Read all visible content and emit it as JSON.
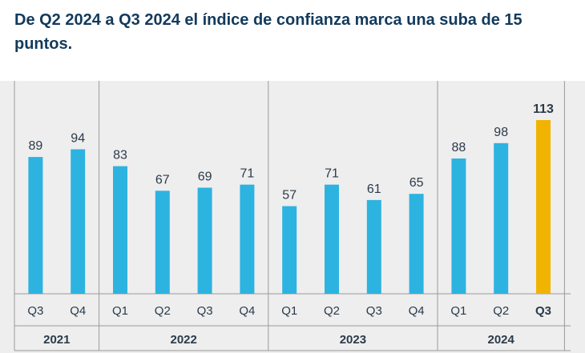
{
  "title": "De Q2 2024 a Q3 2024 el índice de confianza marca una suba de 15 puntos.",
  "colors": {
    "bar": "#2db3e0",
    "highlight": "#f0b400",
    "panel": "#eeeeee",
    "title": "#123a5c",
    "text": "#2b3a4a",
    "divider": "#9a9a9a"
  },
  "chart_data": {
    "type": "bar",
    "categories": [
      "Q3",
      "Q4",
      "Q1",
      "Q2",
      "Q3",
      "Q4",
      "Q1",
      "Q2",
      "Q3",
      "Q4",
      "Q1",
      "Q2",
      "Q3"
    ],
    "values": [
      89,
      94,
      83,
      67,
      69,
      71,
      57,
      71,
      61,
      65,
      88,
      98,
      113
    ],
    "highlight_index": 12,
    "groups": [
      {
        "label": "2021",
        "count": 2
      },
      {
        "label": "2022",
        "count": 4
      },
      {
        "label": "2023",
        "count": 4
      },
      {
        "label": "2024",
        "count": 3
      }
    ],
    "ylim": [
      0,
      113
    ],
    "grid": false,
    "data_labels": true
  }
}
